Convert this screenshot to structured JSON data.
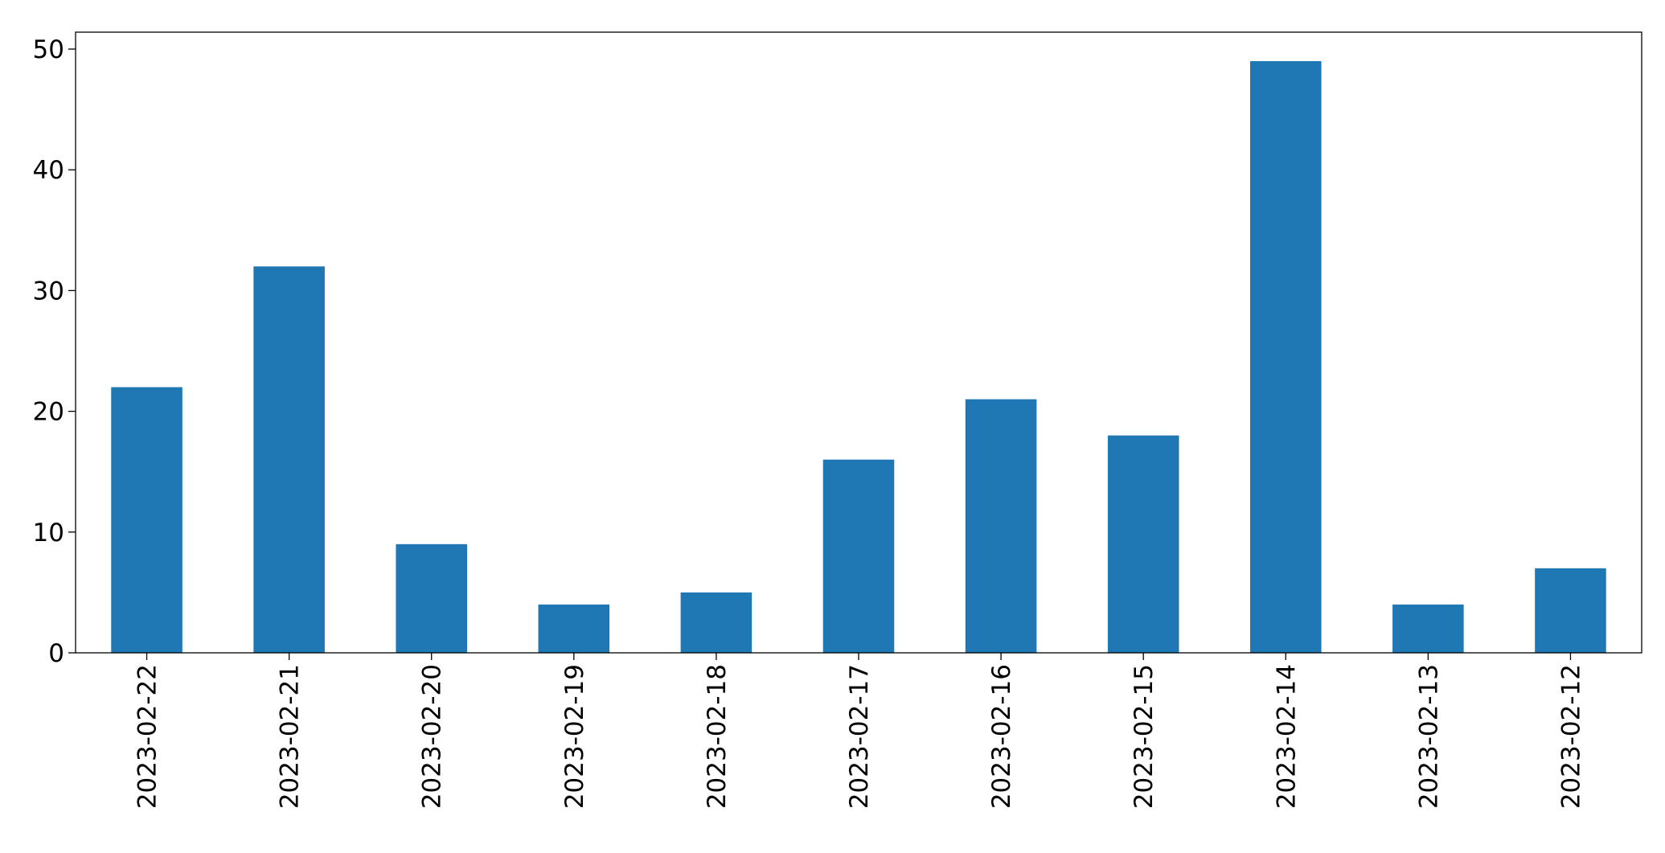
{
  "chart_data": {
    "type": "bar",
    "x": [
      "2023-02-22",
      "2023-02-21",
      "2023-02-20",
      "2023-02-19",
      "2023-02-18",
      "2023-02-17",
      "2023-02-16",
      "2023-02-15",
      "2023-02-14",
      "2023-02-13",
      "2023-02-12"
    ],
    "values": [
      22,
      32,
      9,
      4,
      5,
      16,
      21,
      18,
      49,
      4,
      7
    ],
    "color": "#1f77b4",
    "ylim": [
      0,
      51.4
    ],
    "yticks": [
      0,
      10,
      20,
      30,
      40,
      50
    ],
    "grid": false
  }
}
